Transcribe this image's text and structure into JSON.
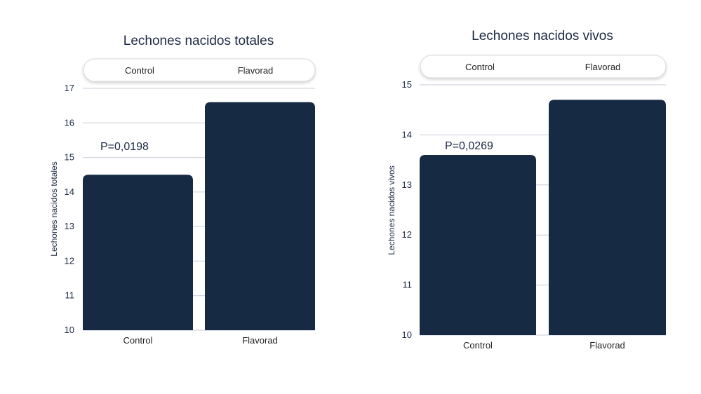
{
  "colors": {
    "bar": "#172a43",
    "grid": "#c7ccd8",
    "text": "#1b2a44",
    "pill_border": "#d5d8de",
    "background": "#ffffff"
  },
  "chart_data": [
    {
      "type": "bar",
      "title": "Lechones nacidos totales",
      "ylabel": "Lechones nacidos totales",
      "xlabel": "",
      "categories": [
        "Control",
        "Flavorad"
      ],
      "values": [
        14.5,
        16.6
      ],
      "ylim": [
        10,
        17
      ],
      "yticks": [
        "10",
        "11",
        "12",
        "13",
        "14",
        "15",
        "16",
        "17"
      ],
      "legend": [
        "Control",
        "Flavorad"
      ],
      "legend_position": "top",
      "annotation": "P=0,0198",
      "grid": true
    },
    {
      "type": "bar",
      "title": "Lechones nacidos vivos",
      "ylabel": "Lechones nacidos vivos",
      "xlabel": "",
      "categories": [
        "Control",
        "Flavorad"
      ],
      "values": [
        13.6,
        14.7
      ],
      "ylim": [
        10,
        15
      ],
      "yticks": [
        "10",
        "11",
        "12",
        "13",
        "14",
        "15"
      ],
      "legend": [
        "Control",
        "Flavorad"
      ],
      "legend_position": "top",
      "annotation": "P=0,0269",
      "grid": true
    }
  ]
}
